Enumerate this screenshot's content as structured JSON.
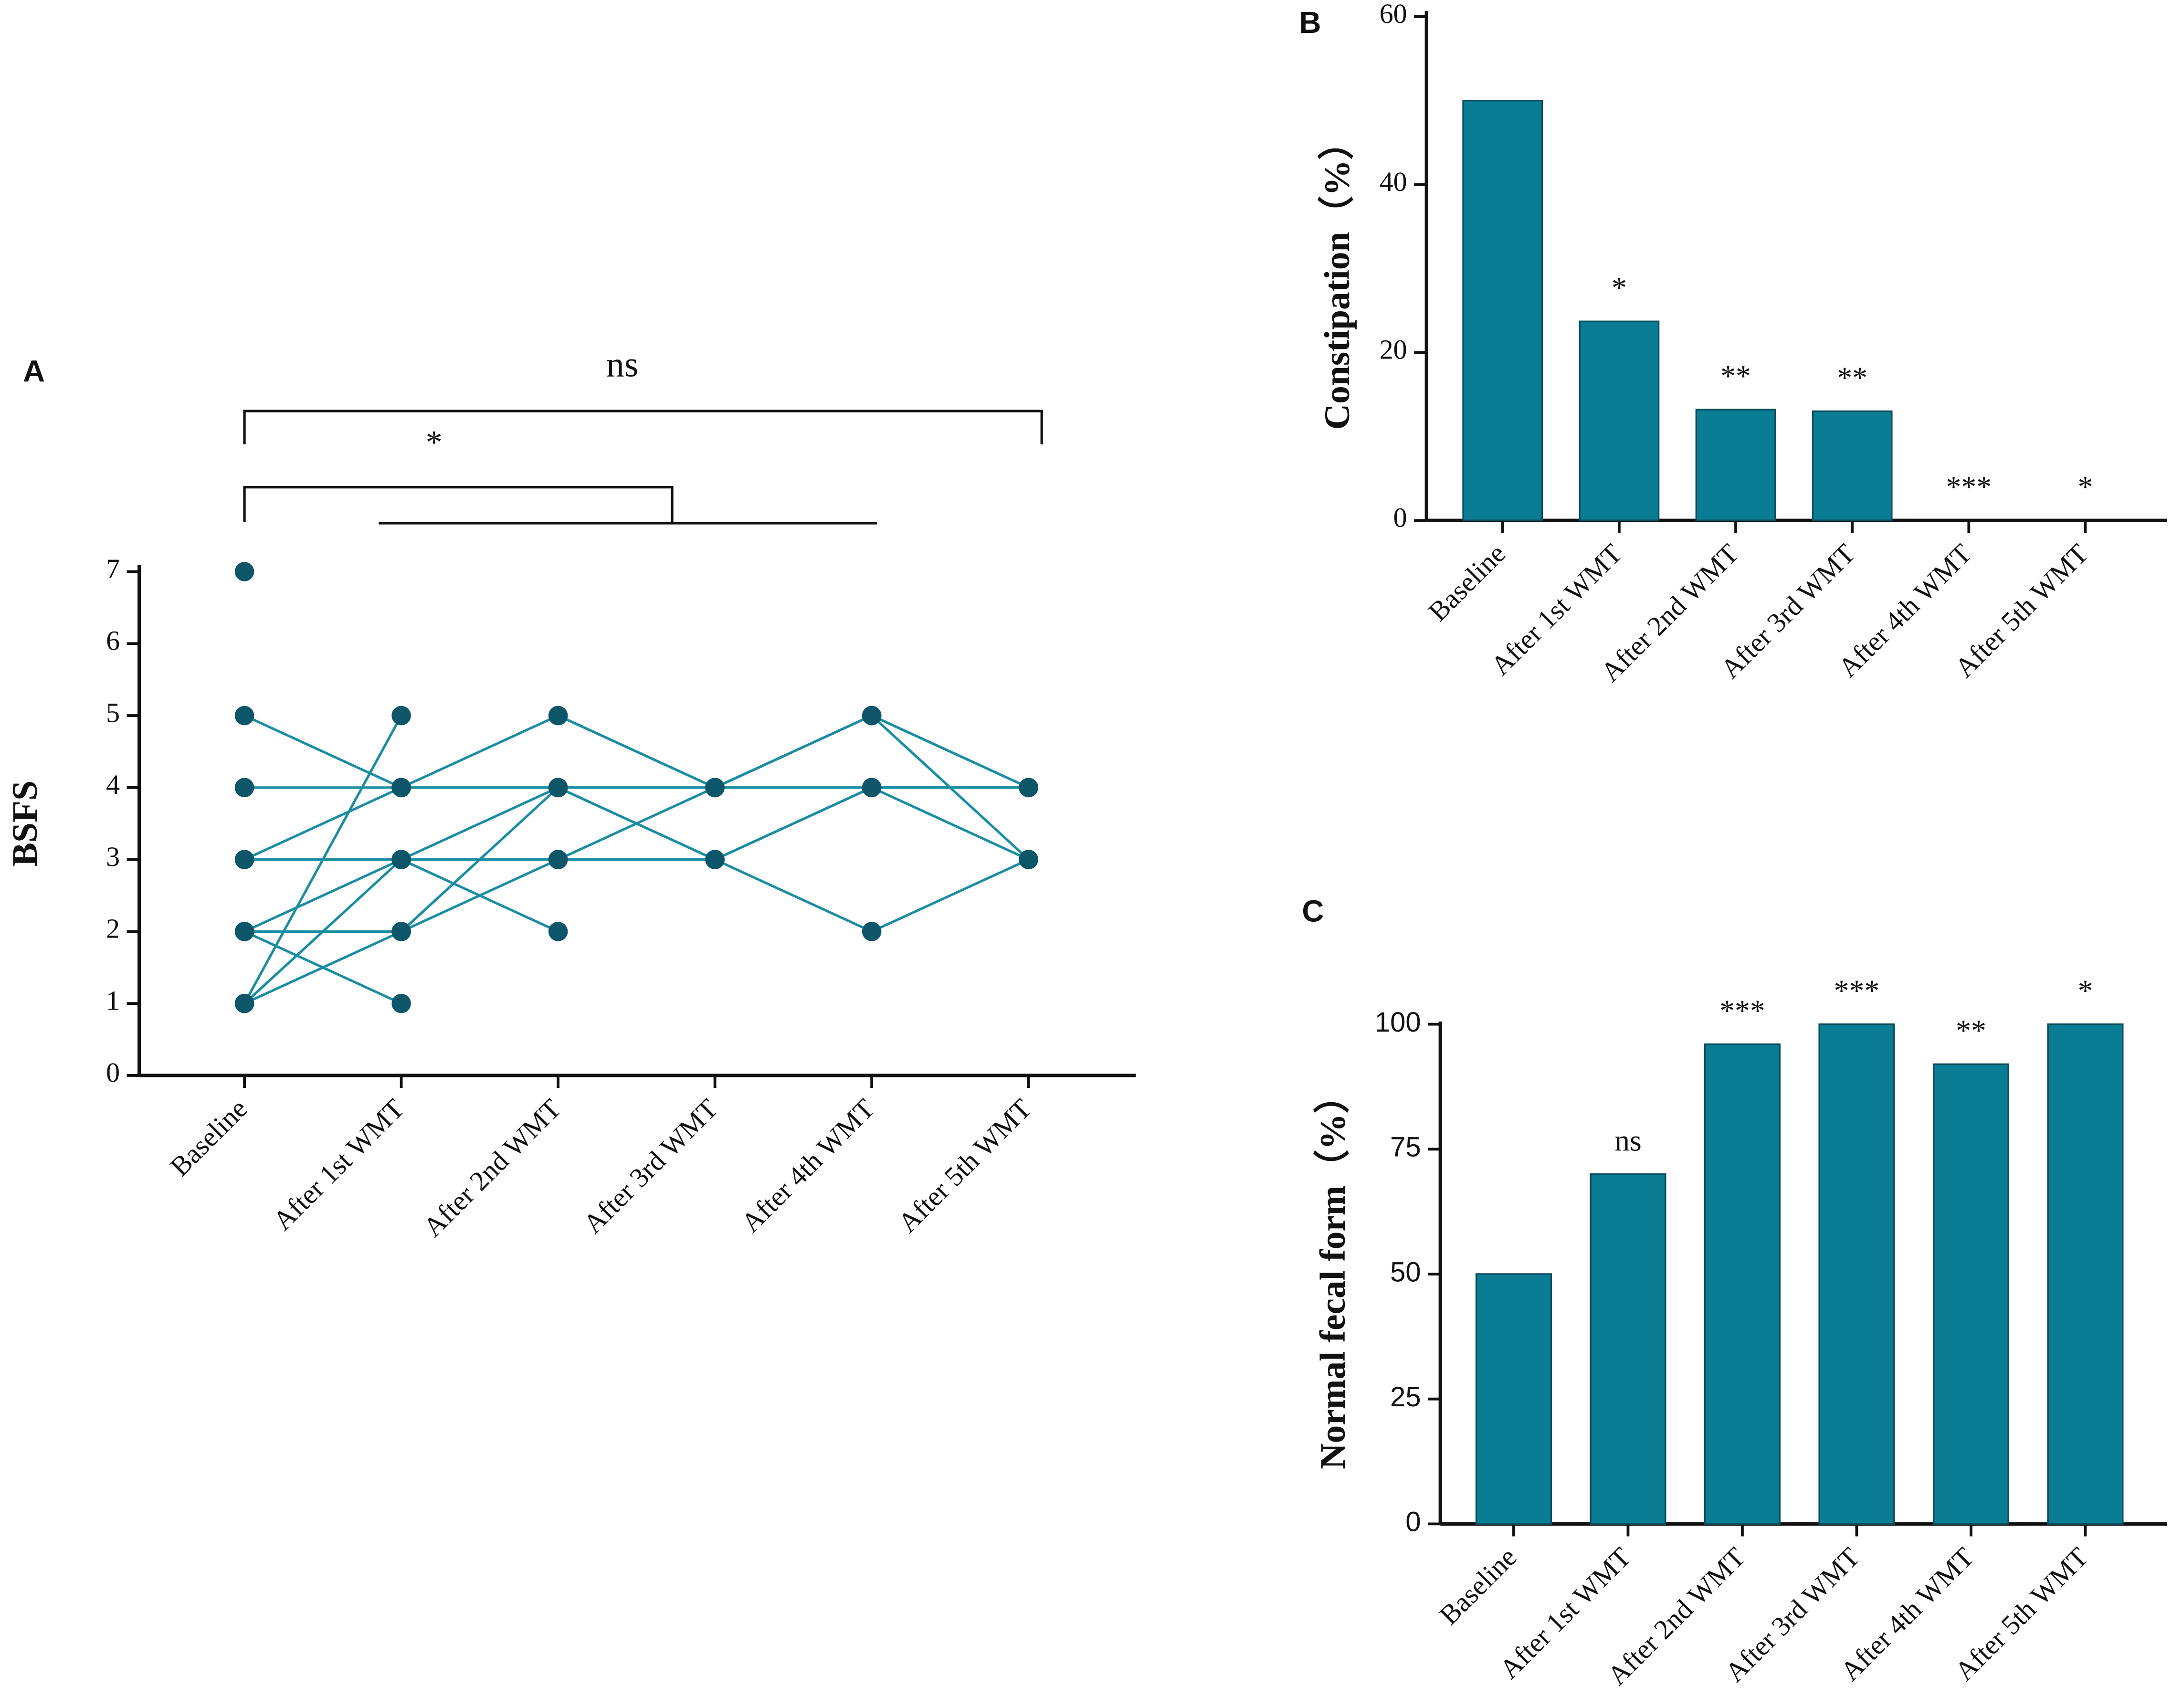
{
  "chart_data": [
    {
      "type": "line",
      "panel_label": "A",
      "ylabel": "BSFS",
      "categories": [
        "Baseline",
        "After 1st WMT",
        "After 2nd WMT",
        "After 3rd WMT",
        "After 4th WMT",
        "After 5th WMT"
      ],
      "series": [
        {
          "values": [
            7,
            null,
            5,
            4,
            5,
            3
          ]
        },
        {
          "values": [
            5,
            4,
            4,
            4,
            4,
            4
          ]
        },
        {
          "values": [
            4,
            4,
            4,
            4,
            4,
            4
          ]
        },
        {
          "values": [
            3,
            3,
            3,
            3,
            2,
            3
          ]
        },
        {
          "values": [
            3,
            4,
            5,
            4,
            5,
            4
          ]
        },
        {
          "values": [
            2,
            3,
            4,
            3,
            4,
            3
          ]
        },
        {
          "values": [
            2,
            2,
            4,
            3,
            4,
            4
          ]
        },
        {
          "values": [
            2,
            1,
            null,
            null,
            null,
            null
          ]
        },
        {
          "values": [
            1,
            5,
            null,
            null,
            null,
            null
          ]
        },
        {
          "values": [
            1,
            3,
            2,
            null,
            null,
            null
          ]
        },
        {
          "values": [
            1,
            2,
            3,
            4,
            5,
            4
          ]
        }
      ],
      "line_color": "#1a8da3",
      "marker_color": "#0d566a",
      "ylim": [
        0,
        7
      ],
      "yticks": [
        0,
        1,
        2,
        3,
        4,
        5,
        6,
        7
      ],
      "annotations": [
        "ns",
        "*"
      ]
    },
    {
      "type": "bar",
      "panel_label": "B",
      "ylabel": "Constipation（%）",
      "categories": [
        "Baseline",
        "After 1st WMT",
        "After 2nd WMT",
        "After 3rd WMT",
        "After 4th WMT",
        "After 5th WMT"
      ],
      "values": [
        50,
        23.7,
        13.2,
        13,
        0,
        0
      ],
      "value_annotations": [
        null,
        "*",
        "**",
        "**",
        "***",
        "*"
      ],
      "color": "#0a7d94",
      "ylim": [
        0,
        60
      ],
      "yticks": [
        0,
        20,
        40,
        60
      ]
    },
    {
      "type": "bar",
      "panel_label": "C",
      "ylabel": "Normal fecal form（%）",
      "categories": [
        "Baseline",
        "After 1st WMT",
        "After 2nd WMT",
        "After 3rd WMT",
        "After 4th WMT",
        "After 5th WMT"
      ],
      "values": [
        50,
        70,
        96,
        100,
        92,
        100
      ],
      "value_annotations": [
        null,
        "ns",
        "***",
        "***",
        "**",
        "*"
      ],
      "color": "#0a7d94",
      "ylim": [
        0,
        100
      ],
      "yticks": [
        0,
        25,
        50,
        75,
        100
      ]
    }
  ]
}
